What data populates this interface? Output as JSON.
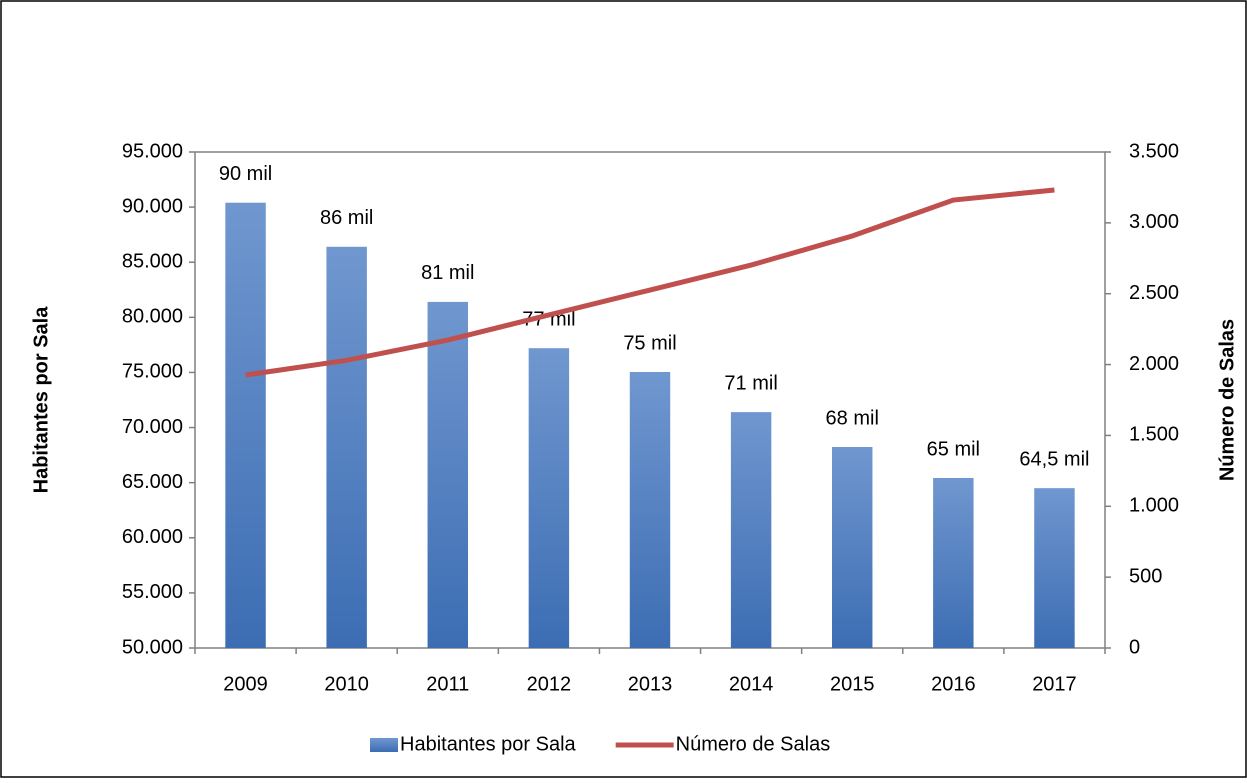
{
  "chart_data": {
    "type": "bar",
    "categories": [
      "2009",
      "2010",
      "2011",
      "2012",
      "2013",
      "2014",
      "2015",
      "2016",
      "2017"
    ],
    "y_label": "Habitantes por Sala",
    "y2_label": "Número de Salas",
    "series": [
      {
        "name": "Habitantes por Sala",
        "type": "bar",
        "color": "#4a7ebf",
        "values": [
          90400,
          86400,
          81400,
          77200,
          75040,
          71400,
          68236,
          65423,
          64500
        ],
        "value_labels": [
          "90 mil",
          "86 mil",
          "81 mil",
          "77 mil",
          "75 mil",
          "71 mil",
          "68 mil",
          "65 mil",
          "64,5 mil"
        ]
      },
      {
        "name": "Número de Salas",
        "type": "line",
        "axis": "y2",
        "color": "#c0504d",
        "values": [
          1926,
          2030,
          2173,
          2350,
          2526,
          2702,
          2907,
          3161,
          3232
        ]
      }
    ],
    "ylim": [
      50000,
      95000
    ],
    "yticks": [
      {
        "value": 50000,
        "label": "50.000"
      },
      {
        "value": 55000,
        "label": "55.000"
      },
      {
        "value": 60000,
        "label": "60.000"
      },
      {
        "value": 65000,
        "label": "65.000"
      },
      {
        "value": 70000,
        "label": "70.000"
      },
      {
        "value": 75000,
        "label": "75.000"
      },
      {
        "value": 80000,
        "label": "80.000"
      },
      {
        "value": 85000,
        "label": "85.000"
      },
      {
        "value": 90000,
        "label": "90.000"
      },
      {
        "value": 95000,
        "label": "95.000"
      }
    ],
    "y2lim": [
      0,
      3500
    ],
    "y2ticks": [
      0,
      500,
      {
        "value": 1000,
        "label": "1.000"
      },
      {
        "value": 1500,
        "label": "1.500"
      },
      {
        "value": 2000,
        "label": "2.000"
      },
      {
        "value": 2500,
        "label": "2.500"
      },
      {
        "value": 3000,
        "label": "3.000"
      },
      {
        "value": 3500,
        "label": "3.500"
      }
    ],
    "legend": "bottom"
  }
}
